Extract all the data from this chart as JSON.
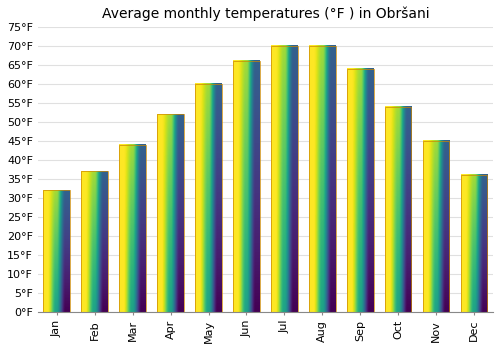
{
  "title": "Average monthly temperatures (°F ) in Obršani",
  "months": [
    "Jan",
    "Feb",
    "Mar",
    "Apr",
    "May",
    "Jun",
    "Jul",
    "Aug",
    "Sep",
    "Oct",
    "Nov",
    "Dec"
  ],
  "values": [
    32,
    37,
    44,
    52,
    60,
    66,
    70,
    70,
    64,
    54,
    45,
    36
  ],
  "bar_color": "#FFA500",
  "bar_edge_color": "#CC8800",
  "ylim": [
    0,
    75
  ],
  "yticks": [
    0,
    5,
    10,
    15,
    20,
    25,
    30,
    35,
    40,
    45,
    50,
    55,
    60,
    65,
    70,
    75
  ],
  "ytick_labels": [
    "0°F",
    "5°F",
    "10°F",
    "15°F",
    "20°F",
    "25°F",
    "30°F",
    "35°F",
    "40°F",
    "45°F",
    "50°F",
    "55°F",
    "60°F",
    "65°F",
    "70°F",
    "75°F"
  ],
  "background_color": "#FFFFFF",
  "plot_bg_color": "#FFFFFF",
  "grid_color": "#E0E0E0",
  "title_fontsize": 10,
  "tick_fontsize": 8,
  "bar_width": 0.7
}
